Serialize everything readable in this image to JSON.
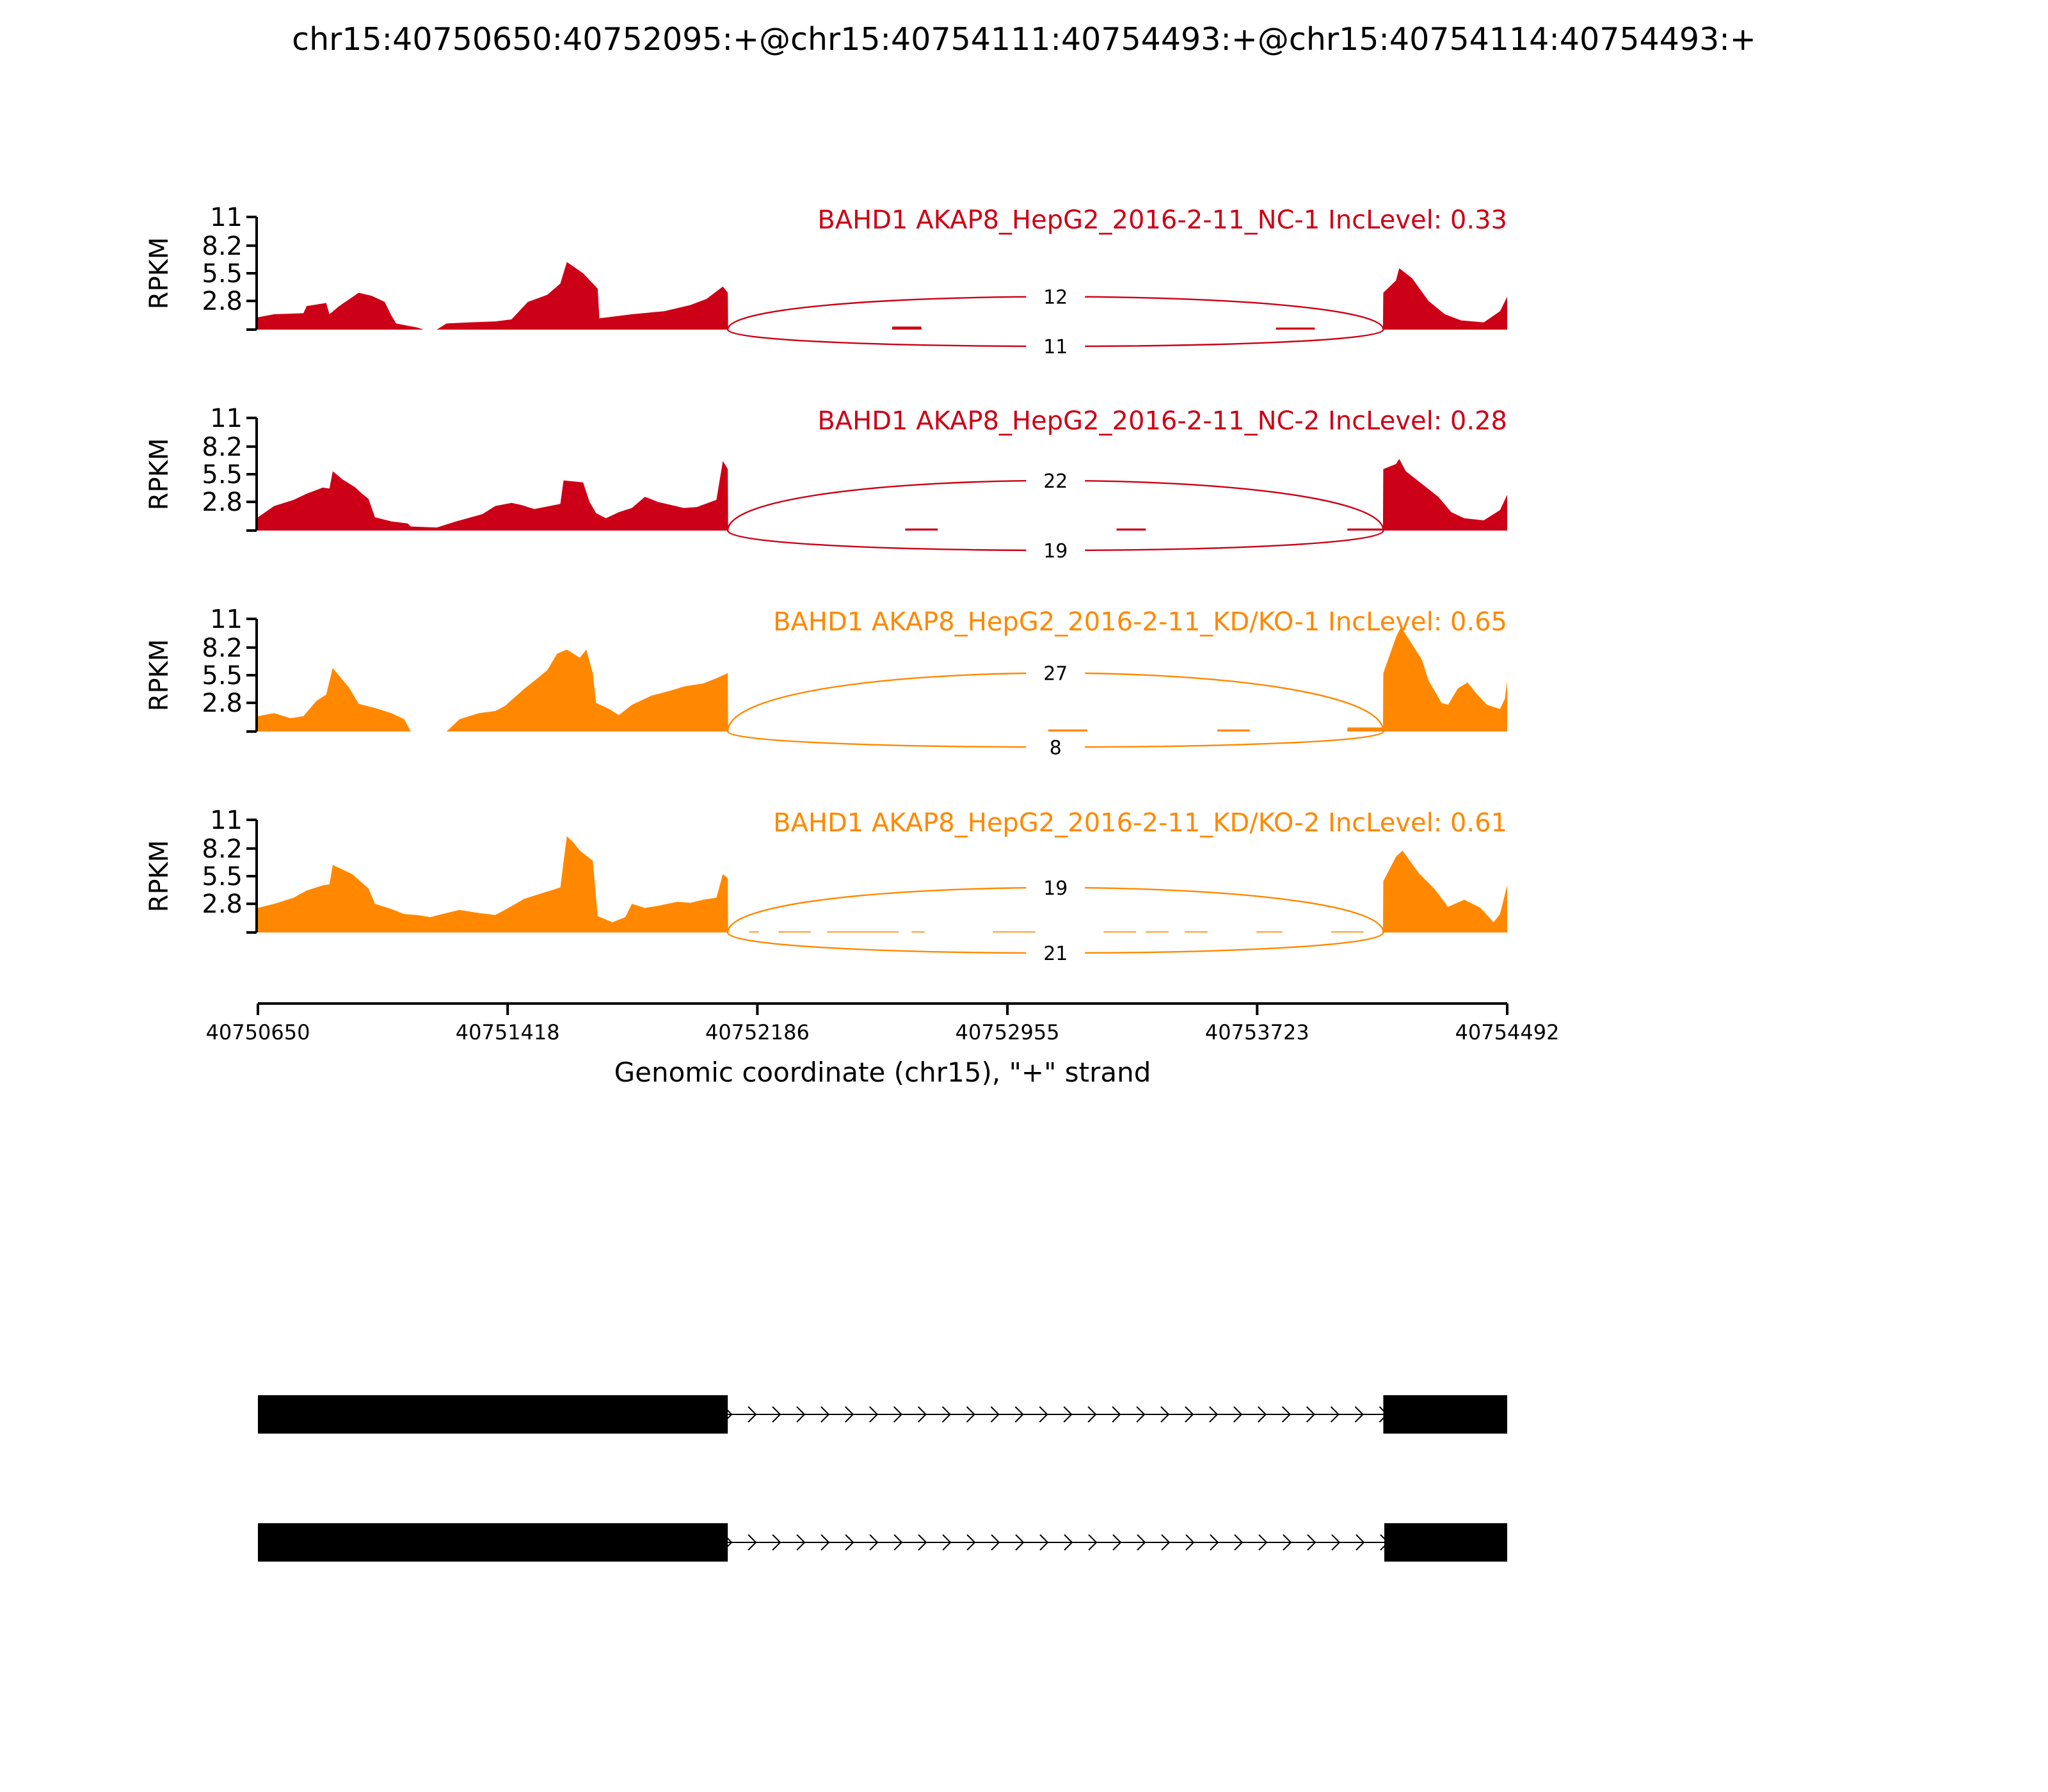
{
  "chart_data": {
    "type": "area",
    "title": "chr15:40750650:40752095:+@chr15:40754111:40754493:+@chr15:40754114:40754493:+",
    "xlabel": "Genomic coordinate (chr15), \"+\" strand",
    "ylabel": "RPKM",
    "xlim": [
      40750650,
      40754492
    ],
    "ylim": [
      0,
      11
    ],
    "xticks": [
      40750650,
      40751418,
      40752186,
      40752955,
      40753723,
      40754492
    ],
    "yticks": [
      2.8,
      5.5,
      8.2,
      11
    ],
    "ytick_labels": [
      "2.8",
      "5.5",
      "8.2",
      "11"
    ],
    "junction": {
      "donor": 40752095,
      "acceptor": 40754111
    },
    "colors": {
      "NC": "#cc0016",
      "KD": "#ff8800",
      "axis": "#000000",
      "exon": "#000000"
    },
    "tracks": [
      {
        "label": "BAHD1 AKAP8_HepG2_2016-2-11_NC-1 IncLevel: 0.33",
        "group": "NC",
        "junctions": {
          "above": 12,
          "below": 11
        },
        "profile": [
          [
            40750650,
            1.2
          ],
          [
            40750700,
            1.5
          ],
          [
            40750790,
            1.6
          ],
          [
            40750800,
            2.3
          ],
          [
            40750860,
            2.6
          ],
          [
            40750870,
            1.5
          ],
          [
            40750900,
            2.3
          ],
          [
            40750960,
            3.6
          ],
          [
            40751000,
            3.3
          ],
          [
            40751040,
            2.7
          ],
          [
            40751060,
            1.4
          ],
          [
            40751075,
            0.6
          ],
          [
            40751140,
            0.2
          ],
          [
            40751160,
            0
          ],
          [
            40751200,
            0
          ],
          [
            40751230,
            0.6
          ],
          [
            40751300,
            0.7
          ],
          [
            40751380,
            0.8
          ],
          [
            40751430,
            1.0
          ],
          [
            40751480,
            2.7
          ],
          [
            40751540,
            3.4
          ],
          [
            40751580,
            4.5
          ],
          [
            40751600,
            6.6
          ],
          [
            40751650,
            5.5
          ],
          [
            40751695,
            4.0
          ],
          [
            40751700,
            1.1
          ],
          [
            40751800,
            1.5
          ],
          [
            40751900,
            1.8
          ],
          [
            40751980,
            2.4
          ],
          [
            40752030,
            3.0
          ],
          [
            40752080,
            4.2
          ],
          [
            40752095,
            3.6
          ],
          [
            40752096,
            0
          ],
          [
            40752600,
            0
          ],
          [
            40752601,
            0.3
          ],
          [
            40752690,
            0.3
          ],
          [
            40752691,
            0
          ],
          [
            40753780,
            0
          ],
          [
            40753781,
            0.2
          ],
          [
            40753900,
            0.2
          ],
          [
            40753901,
            0
          ],
          [
            40754110,
            0
          ],
          [
            40754111,
            3.6
          ],
          [
            40754150,
            4.8
          ],
          [
            40754160,
            6.0
          ],
          [
            40754200,
            5.0
          ],
          [
            40754250,
            2.8
          ],
          [
            40754300,
            1.5
          ],
          [
            40754350,
            0.9
          ],
          [
            40754420,
            0.7
          ],
          [
            40754470,
            1.8
          ],
          [
            40754492,
            3.2
          ]
        ]
      },
      {
        "label": "BAHD1 AKAP8_HepG2_2016-2-11_NC-2 IncLevel: 0.28",
        "group": "NC",
        "junctions": {
          "above": 22,
          "below": 19
        },
        "profile": [
          [
            40750650,
            1.3
          ],
          [
            40750700,
            2.4
          ],
          [
            40750760,
            3.0
          ],
          [
            40750800,
            3.6
          ],
          [
            40750850,
            4.2
          ],
          [
            40750870,
            4.1
          ],
          [
            40750880,
            5.8
          ],
          [
            40750910,
            5.0
          ],
          [
            40750950,
            4.2
          ],
          [
            40750970,
            3.6
          ],
          [
            40750990,
            3.1
          ],
          [
            40751010,
            1.3
          ],
          [
            40751060,
            0.9
          ],
          [
            40751110,
            0.7
          ],
          [
            40751120,
            0.4
          ],
          [
            40751200,
            0.3
          ],
          [
            40751260,
            0.9
          ],
          [
            40751340,
            1.6
          ],
          [
            40751380,
            2.4
          ],
          [
            40751430,
            2.7
          ],
          [
            40751460,
            2.5
          ],
          [
            40751480,
            2.3
          ],
          [
            40751500,
            2.1
          ],
          [
            40751580,
            2.6
          ],
          [
            40751590,
            4.9
          ],
          [
            40751650,
            4.7
          ],
          [
            40751670,
            2.8
          ],
          [
            40751690,
            1.7
          ],
          [
            40751720,
            1.2
          ],
          [
            40751760,
            1.8
          ],
          [
            40751800,
            2.2
          ],
          [
            40751840,
            3.3
          ],
          [
            40751880,
            2.8
          ],
          [
            40751960,
            2.2
          ],
          [
            40752000,
            2.3
          ],
          [
            40752060,
            3.0
          ],
          [
            40752080,
            6.8
          ],
          [
            40752095,
            6.0
          ],
          [
            40752096,
            0
          ],
          [
            40752640,
            0
          ],
          [
            40752641,
            0.2
          ],
          [
            40752740,
            0.2
          ],
          [
            40752741,
            0
          ],
          [
            40753290,
            0
          ],
          [
            40753291,
            0.2
          ],
          [
            40753380,
            0.2
          ],
          [
            40753381,
            0
          ],
          [
            40754000,
            0
          ],
          [
            40754001,
            0.2
          ],
          [
            40754110,
            0.2
          ],
          [
            40754111,
            6.0
          ],
          [
            40754150,
            6.5
          ],
          [
            40754160,
            7.0
          ],
          [
            40754180,
            5.8
          ],
          [
            40754220,
            4.8
          ],
          [
            40754280,
            3.3
          ],
          [
            40754320,
            1.8
          ],
          [
            40754360,
            1.2
          ],
          [
            40754420,
            1.0
          ],
          [
            40754470,
            2.0
          ],
          [
            40754492,
            3.5
          ]
        ]
      },
      {
        "label": "BAHD1 AKAP8_HepG2_2016-2-11_KD/KO-1 IncLevel: 0.65",
        "group": "KD",
        "junctions": {
          "above": 27,
          "below": 8
        },
        "profile": [
          [
            40750650,
            1.5
          ],
          [
            40750700,
            1.8
          ],
          [
            40750750,
            1.3
          ],
          [
            40750790,
            1.5
          ],
          [
            40750830,
            3.0
          ],
          [
            40750860,
            3.6
          ],
          [
            40750880,
            6.2
          ],
          [
            40750930,
            4.3
          ],
          [
            40750960,
            2.7
          ],
          [
            40751010,
            2.3
          ],
          [
            40751060,
            1.8
          ],
          [
            40751100,
            1.2
          ],
          [
            40751120,
            0
          ],
          [
            40751150,
            0
          ],
          [
            40751230,
            0
          ],
          [
            40751270,
            1.2
          ],
          [
            40751330,
            1.8
          ],
          [
            40751380,
            2.0
          ],
          [
            40751410,
            2.5
          ],
          [
            40751470,
            4.2
          ],
          [
            40751510,
            5.2
          ],
          [
            40751540,
            6.0
          ],
          [
            40751570,
            7.6
          ],
          [
            40751600,
            8.0
          ],
          [
            40751640,
            7.2
          ],
          [
            40751660,
            8.0
          ],
          [
            40751680,
            5.7
          ],
          [
            40751690,
            2.8
          ],
          [
            40751730,
            2.2
          ],
          [
            40751760,
            1.6
          ],
          [
            40751800,
            2.6
          ],
          [
            40751860,
            3.5
          ],
          [
            40751920,
            4.0
          ],
          [
            40751960,
            4.4
          ],
          [
            40752020,
            4.7
          ],
          [
            40752060,
            5.2
          ],
          [
            40752095,
            5.7
          ],
          [
            40752096,
            0
          ],
          [
            40753080,
            0
          ],
          [
            40753081,
            0.2
          ],
          [
            40753200,
            0.2
          ],
          [
            40753201,
            0
          ],
          [
            40753600,
            0
          ],
          [
            40753601,
            0.2
          ],
          [
            40753700,
            0.2
          ],
          [
            40753701,
            0
          ],
          [
            40754000,
            0
          ],
          [
            40754001,
            0.4
          ],
          [
            40754110,
            0.4
          ],
          [
            40754111,
            5.7
          ],
          [
            40754150,
            9.2
          ],
          [
            40754165,
            10.2
          ],
          [
            40754200,
            8.5
          ],
          [
            40754230,
            7.0
          ],
          [
            40754250,
            5.0
          ],
          [
            40754290,
            2.8
          ],
          [
            40754310,
            2.6
          ],
          [
            40754340,
            4.2
          ],
          [
            40754370,
            4.8
          ],
          [
            40754400,
            3.6
          ],
          [
            40754430,
            2.6
          ],
          [
            40754470,
            2.2
          ],
          [
            40754485,
            3.2
          ],
          [
            40754492,
            5.0
          ]
        ]
      },
      {
        "label": "BAHD1 AKAP8_HepG2_2016-2-11_KD/KO-2 IncLevel: 0.61",
        "group": "KD",
        "junctions": {
          "above": 19,
          "below": 21
        },
        "profile": [
          [
            40750650,
            2.4
          ],
          [
            40750700,
            2.8
          ],
          [
            40750760,
            3.4
          ],
          [
            40750800,
            4.1
          ],
          [
            40750850,
            4.6
          ],
          [
            40750870,
            4.7
          ],
          [
            40750880,
            6.6
          ],
          [
            40750940,
            5.7
          ],
          [
            40750990,
            4.3
          ],
          [
            40751010,
            2.8
          ],
          [
            40751060,
            2.3
          ],
          [
            40751100,
            1.8
          ],
          [
            40751140,
            1.7
          ],
          [
            40751180,
            1.5
          ],
          [
            40751230,
            1.9
          ],
          [
            40751270,
            2.2
          ],
          [
            40751330,
            1.9
          ],
          [
            40751380,
            1.7
          ],
          [
            40751420,
            2.4
          ],
          [
            40751470,
            3.3
          ],
          [
            40751520,
            3.8
          ],
          [
            40751580,
            4.4
          ],
          [
            40751600,
            9.4
          ],
          [
            40751620,
            8.8
          ],
          [
            40751640,
            8.0
          ],
          [
            40751680,
            7.0
          ],
          [
            40751695,
            1.6
          ],
          [
            40751740,
            1.0
          ],
          [
            40751780,
            1.5
          ],
          [
            40751800,
            2.8
          ],
          [
            40751840,
            2.4
          ],
          [
            40751880,
            2.6
          ],
          [
            40751940,
            3.0
          ],
          [
            40751980,
            2.9
          ],
          [
            40752020,
            3.2
          ],
          [
            40752060,
            3.4
          ],
          [
            40752080,
            5.7
          ],
          [
            40752095,
            5.3
          ],
          [
            40752096,
            0
          ],
          [
            40752160,
            0
          ],
          [
            40752161,
            0.1
          ],
          [
            40752190,
            0.1
          ],
          [
            40752191,
            0
          ],
          [
            40752250,
            0
          ],
          [
            40752251,
            0.1
          ],
          [
            40752350,
            0.1
          ],
          [
            40752351,
            0
          ],
          [
            40752400,
            0
          ],
          [
            40752401,
            0.1
          ],
          [
            40752620,
            0.1
          ],
          [
            40752621,
            0
          ],
          [
            40752660,
            0
          ],
          [
            40752661,
            0.1
          ],
          [
            40752700,
            0.1
          ],
          [
            40752701,
            0
          ],
          [
            40752910,
            0
          ],
          [
            40752911,
            0.1
          ],
          [
            40753040,
            0.1
          ],
          [
            40753041,
            0
          ],
          [
            40753250,
            0
          ],
          [
            40753251,
            0.1
          ],
          [
            40753350,
            0.1
          ],
          [
            40753351,
            0
          ],
          [
            40753380,
            0
          ],
          [
            40753381,
            0.1
          ],
          [
            40753450,
            0.1
          ],
          [
            40753451,
            0
          ],
          [
            40753500,
            0
          ],
          [
            40753501,
            0.1
          ],
          [
            40753570,
            0.1
          ],
          [
            40753571,
            0
          ],
          [
            40753720,
            0
          ],
          [
            40753721,
            0.1
          ],
          [
            40753800,
            0.1
          ],
          [
            40753801,
            0
          ],
          [
            40753950,
            0
          ],
          [
            40753951,
            0.1
          ],
          [
            40754050,
            0.1
          ],
          [
            40754051,
            0
          ],
          [
            40754110,
            0
          ],
          [
            40754111,
            5.0
          ],
          [
            40754150,
            7.4
          ],
          [
            40754170,
            8.0
          ],
          [
            40754220,
            5.8
          ],
          [
            40754270,
            4.2
          ],
          [
            40754310,
            2.5
          ],
          [
            40754360,
            3.2
          ],
          [
            40754410,
            2.4
          ],
          [
            40754450,
            1.0
          ],
          [
            40754470,
            1.8
          ],
          [
            40754492,
            4.6
          ]
        ]
      }
    ],
    "transcripts": [
      {
        "exons": [
          [
            40750650,
            40752095
          ],
          [
            40754111,
            40754492
          ]
        ]
      },
      {
        "exons": [
          [
            40750650,
            40752095
          ],
          [
            40754114,
            40754492
          ]
        ]
      }
    ]
  }
}
